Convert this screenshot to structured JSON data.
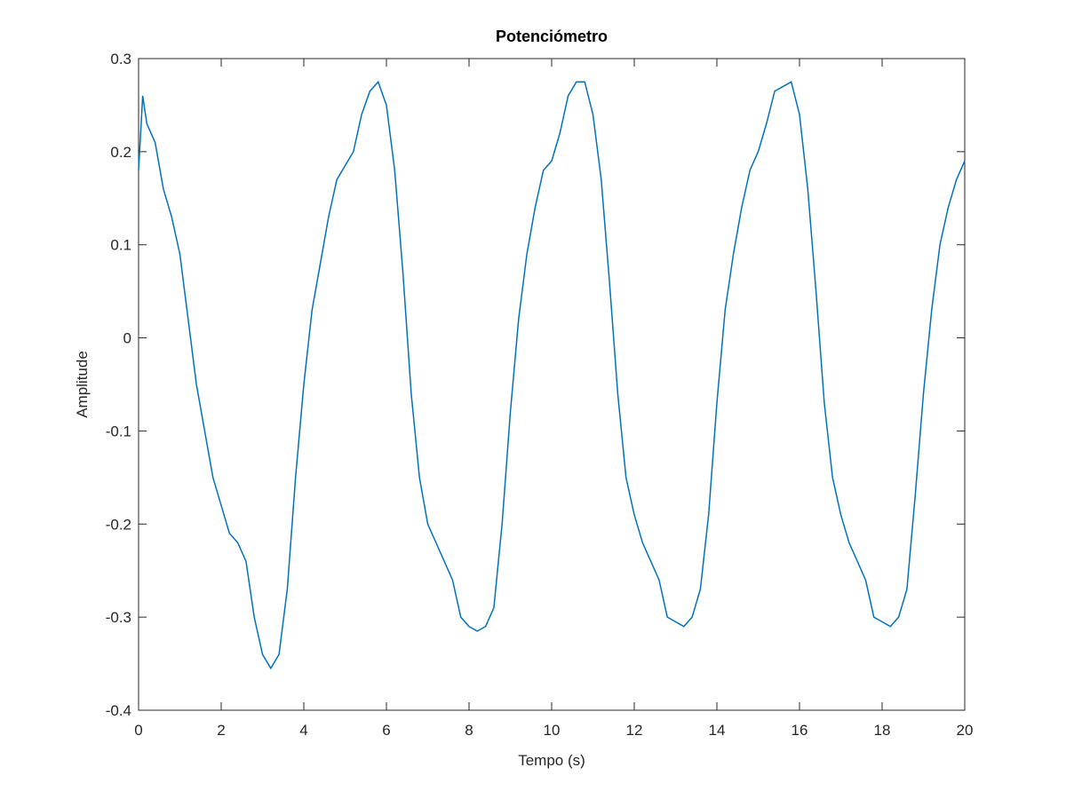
{
  "chart_data": {
    "type": "line",
    "title": "Potenciómetro",
    "x_label": "Tempo (s)",
    "y_label": "Amplitude",
    "x": [
      0,
      0.1,
      0.2,
      0.4,
      0.6,
      0.8,
      1.0,
      1.2,
      1.4,
      1.6,
      1.8,
      2.0,
      2.2,
      2.4,
      2.6,
      2.8,
      3.0,
      3.2,
      3.4,
      3.6,
      3.8,
      4.0,
      4.2,
      4.4,
      4.6,
      4.8,
      5.0,
      5.2,
      5.4,
      5.6,
      5.8,
      6.0,
      6.2,
      6.4,
      6.6,
      6.8,
      7.0,
      7.2,
      7.4,
      7.6,
      7.8,
      8.0,
      8.2,
      8.4,
      8.6,
      8.8,
      9.0,
      9.2,
      9.4,
      9.6,
      9.8,
      10.0,
      10.2,
      10.4,
      10.6,
      10.8,
      11.0,
      11.2,
      11.4,
      11.6,
      11.8,
      12.0,
      12.2,
      12.4,
      12.6,
      12.8,
      13.0,
      13.2,
      13.4,
      13.6,
      13.8,
      14.0,
      14.2,
      14.4,
      14.6,
      14.8,
      15.0,
      15.2,
      15.4,
      15.6,
      15.8,
      16.0,
      16.2,
      16.4,
      16.6,
      16.8,
      17.0,
      17.2,
      17.4,
      17.6,
      17.8,
      18.0,
      18.2,
      18.4,
      18.6,
      18.8,
      19.0,
      19.2,
      19.4,
      19.6,
      19.8,
      20.0
    ],
    "series": [
      {
        "color": "#0072bd",
        "values": [
          0.18,
          0.26,
          0.23,
          0.21,
          0.16,
          0.13,
          0.09,
          0.02,
          -0.05,
          -0.1,
          -0.15,
          -0.18,
          -0.21,
          -0.22,
          -0.24,
          -0.3,
          -0.34,
          -0.355,
          -0.34,
          -0.27,
          -0.15,
          -0.05,
          0.03,
          0.08,
          0.13,
          0.17,
          0.185,
          0.2,
          0.24,
          0.265,
          0.275,
          0.25,
          0.18,
          0.07,
          -0.06,
          -0.15,
          -0.2,
          -0.22,
          -0.24,
          -0.26,
          -0.3,
          -0.31,
          -0.315,
          -0.31,
          -0.29,
          -0.2,
          -0.08,
          0.02,
          0.09,
          0.14,
          0.18,
          0.19,
          0.22,
          0.26,
          0.275,
          0.275,
          0.24,
          0.17,
          0.06,
          -0.06,
          -0.15,
          -0.19,
          -0.22,
          -0.24,
          -0.26,
          -0.3,
          -0.305,
          -0.31,
          -0.3,
          -0.27,
          -0.19,
          -0.07,
          0.03,
          0.09,
          0.14,
          0.18,
          0.2,
          0.23,
          0.265,
          0.27,
          0.275,
          0.24,
          0.16,
          0.05,
          -0.07,
          -0.15,
          -0.19,
          -0.22,
          -0.24,
          -0.26,
          -0.3,
          -0.305,
          -0.31,
          -0.3,
          -0.27,
          -0.17,
          -0.06,
          0.03,
          0.1,
          0.14,
          0.17,
          0.19
        ]
      }
    ],
    "xlim": [
      0,
      20
    ],
    "xticks": [
      0,
      2,
      4,
      6,
      8,
      10,
      12,
      14,
      16,
      18,
      20
    ],
    "ylim": [
      -0.4,
      0.3
    ],
    "yticks": [
      -0.4,
      -0.3,
      -0.2,
      -0.1,
      0,
      0.1,
      0.2,
      0.3
    ]
  }
}
